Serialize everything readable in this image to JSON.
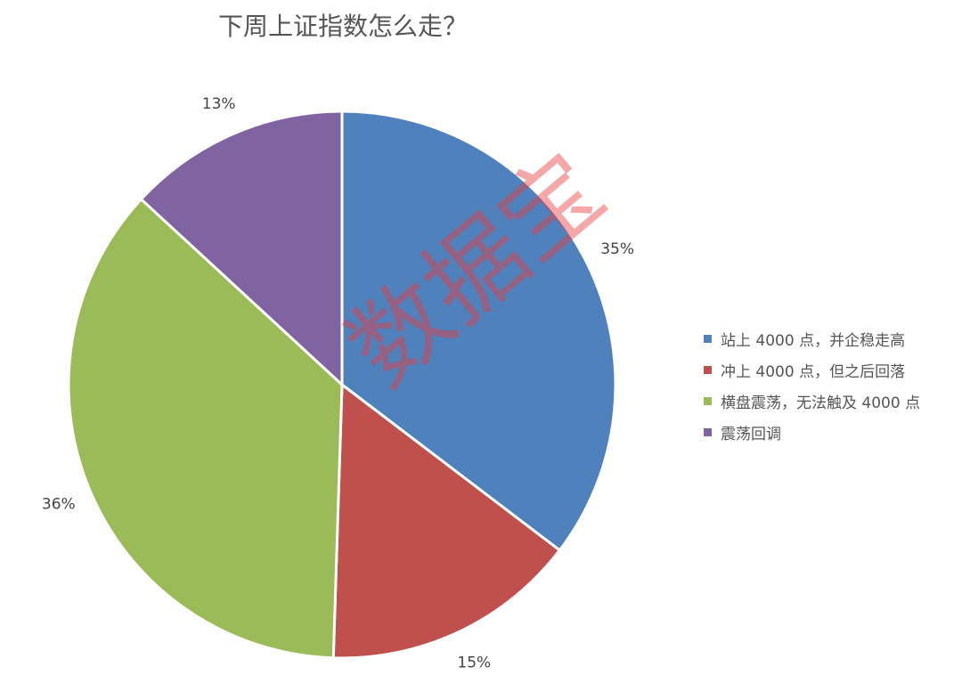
{
  "chart_data": {
    "type": "pie",
    "title": "下周上证指数怎么走？",
    "categories": [
      "站上 4000 点，并企稳走高",
      "冲上 4000 点，但之后回落",
      "横盘震荡，无法触及 4000 点",
      "震荡回调"
    ],
    "values": [
      35,
      15,
      36,
      13
    ],
    "labels": [
      "35%",
      "15%",
      "36%",
      "13%"
    ],
    "colors": [
      "#4F81BD",
      "#C0504D",
      "#9BBB59",
      "#8064A2"
    ],
    "legend_placement": "right"
  },
  "watermark": "数据宝"
}
